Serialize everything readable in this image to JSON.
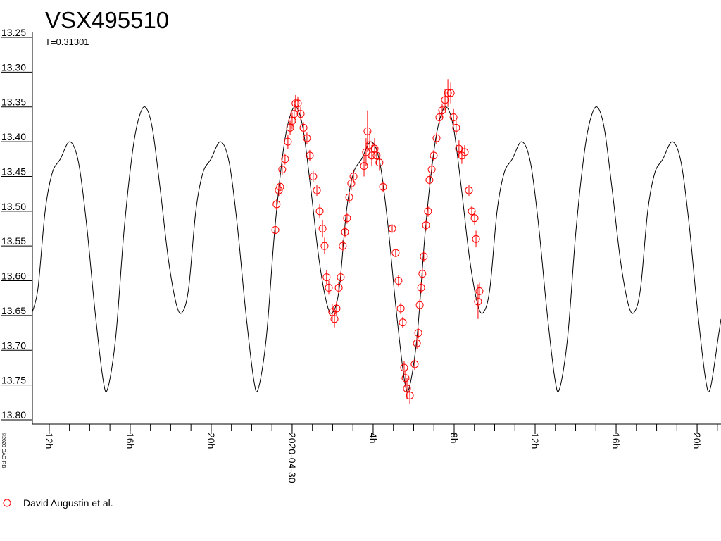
{
  "chart_data": {
    "type": "line",
    "title": "VSX495510",
    "subtitle": "T=0.31301",
    "credit": "©2020 OAG-RB",
    "xlim": [
      -12.83,
      21.18
    ],
    "ylim": [
      13.25,
      13.8
    ],
    "y_inverted": true,
    "xminor_interval": 1,
    "xticks": [
      {
        "value": -12,
        "label": "12h"
      },
      {
        "value": -8,
        "label": "16h"
      },
      {
        "value": -4,
        "label": "20h"
      },
      {
        "value": 0,
        "label": "2020-04-30"
      },
      {
        "value": 4,
        "label": "4h"
      },
      {
        "value": 8,
        "label": "8h"
      },
      {
        "value": 12,
        "label": "12h"
      },
      {
        "value": 16,
        "label": "16h"
      },
      {
        "value": 20,
        "label": "20h"
      }
    ],
    "yticks": [
      13.25,
      {
        "value": 13.3,
        "label": "13.30"
      },
      13.35,
      {
        "value": 13.4,
        "label": "13.40"
      },
      13.45,
      {
        "value": 13.5,
        "label": "13.50"
      },
      13.55,
      {
        "value": 13.6,
        "label": "13.60"
      },
      13.65,
      {
        "value": 13.7,
        "label": "13.70"
      },
      13.75,
      {
        "value": 13.8,
        "label": "13.80"
      }
    ],
    "series": [
      {
        "type": "line",
        "color": "#000000",
        "x": [
          -12.83,
          -12.55,
          -12.2,
          -11.85,
          -11.45,
          -10.98,
          -10.55,
          -10.15,
          -9.75,
          -9.35,
          -9.11,
          -8.71,
          -8.31,
          -7.91,
          -7.61,
          -7.27,
          -6.91,
          -6.51,
          -6.11,
          -5.71,
          -5.42,
          -5.11,
          -4.76,
          -4.41,
          -4.01,
          -3.54,
          -3.11,
          -2.71,
          -2.31,
          -1.91,
          -1.67,
          -1.27,
          -0.87,
          -0.47,
          -0.17,
          0.17,
          0.53,
          0.93,
          1.33,
          1.73,
          2.02,
          2.33,
          2.68,
          3.03,
          3.43,
          3.9,
          4.33,
          4.73,
          5.13,
          5.53,
          5.77,
          6.17,
          6.57,
          6.97,
          7.27,
          7.61,
          7.97,
          8.37,
          8.77,
          9.17,
          9.46,
          9.77,
          10.12,
          10.47,
          10.87,
          11.34,
          11.77,
          12.17,
          12.57,
          12.97,
          13.21,
          13.61,
          14.01,
          14.41,
          14.71,
          15.05,
          15.41,
          15.81,
          16.21,
          16.61,
          16.9,
          17.21,
          17.56,
          17.91,
          18.31,
          18.78,
          19.21,
          19.61,
          20.01,
          20.41,
          20.65,
          21.05,
          21.18
        ],
        "values": [
          13.645,
          13.61,
          13.5,
          13.445,
          13.425,
          13.4,
          13.43,
          13.52,
          13.64,
          13.74,
          13.755,
          13.68,
          13.53,
          13.42,
          13.37,
          13.35,
          13.38,
          13.47,
          13.57,
          13.635,
          13.645,
          13.61,
          13.5,
          13.445,
          13.425,
          13.4,
          13.43,
          13.52,
          13.64,
          13.74,
          13.755,
          13.68,
          13.53,
          13.42,
          13.37,
          13.35,
          13.38,
          13.47,
          13.57,
          13.635,
          13.645,
          13.61,
          13.5,
          13.445,
          13.425,
          13.4,
          13.43,
          13.52,
          13.64,
          13.74,
          13.755,
          13.68,
          13.53,
          13.42,
          13.37,
          13.35,
          13.38,
          13.47,
          13.57,
          13.635,
          13.645,
          13.61,
          13.5,
          13.445,
          13.425,
          13.4,
          13.43,
          13.52,
          13.64,
          13.74,
          13.755,
          13.68,
          13.53,
          13.42,
          13.37,
          13.35,
          13.38,
          13.47,
          13.57,
          13.635,
          13.645,
          13.61,
          13.5,
          13.445,
          13.425,
          13.4,
          13.43,
          13.52,
          13.64,
          13.74,
          13.755,
          13.68,
          13.655
        ]
      },
      {
        "type": "scatter",
        "name": "David Augustin et al.",
        "color": "#ff0000",
        "x": [
          -0.83,
          -0.77,
          -0.66,
          -0.59,
          -0.49,
          -0.35,
          -0.21,
          -0.1,
          0,
          0.1,
          0.17,
          0.28,
          0.42,
          0.56,
          0.73,
          0.87,
          1.04,
          1.22,
          1.36,
          1.5,
          1.6,
          1.7,
          1.81,
          1.98,
          2.09,
          2.19,
          2.3,
          2.4,
          2.5,
          2.61,
          2.71,
          2.82,
          2.92,
          3.03,
          3.55,
          3.65,
          3.72,
          3.83,
          3.93,
          4.07,
          4.17,
          4.31,
          4.49,
          4.94,
          5.11,
          5.25,
          5.36,
          5.46,
          5.53,
          5.6,
          5.67,
          5.81,
          6.05,
          6.16,
          6.23,
          6.3,
          6.37,
          6.43,
          6.5,
          6.61,
          6.71,
          6.78,
          6.89,
          6.99,
          7.13,
          7.27,
          7.41,
          7.55,
          7.69,
          7.83,
          7.97,
          8.1,
          8.24,
          8.38,
          8.52,
          8.73,
          8.87,
          9.01,
          9.08,
          9.18,
          9.25
        ],
        "values": [
          13.527,
          13.49,
          13.47,
          13.465,
          13.44,
          13.425,
          13.4,
          13.38,
          13.37,
          13.36,
          13.345,
          13.345,
          13.36,
          13.38,
          13.395,
          13.42,
          13.45,
          13.47,
          13.5,
          13.525,
          13.55,
          13.595,
          13.61,
          13.645,
          13.655,
          13.64,
          13.61,
          13.595,
          13.55,
          13.53,
          13.51,
          13.48,
          13.46,
          13.45,
          13.435,
          13.415,
          13.385,
          13.405,
          13.42,
          13.41,
          13.42,
          13.43,
          13.465,
          13.525,
          13.56,
          13.6,
          13.64,
          13.66,
          13.725,
          13.74,
          13.755,
          13.765,
          13.72,
          13.69,
          13.675,
          13.635,
          13.61,
          13.59,
          13.565,
          13.52,
          13.5,
          13.455,
          13.44,
          13.42,
          13.395,
          13.365,
          13.355,
          13.34,
          13.33,
          13.33,
          13.365,
          13.38,
          13.41,
          13.42,
          13.415,
          13.47,
          13.5,
          13.51,
          13.54,
          13.63,
          13.615
        ],
        "errors": [
          0.006,
          0.008,
          0.008,
          0.006,
          0.008,
          0.008,
          0.01,
          0.01,
          0.012,
          0.012,
          0.012,
          0.01,
          0.01,
          0.008,
          0.008,
          0.008,
          0.008,
          0.008,
          0.01,
          0.012,
          0.012,
          0.01,
          0.01,
          0.012,
          0.012,
          0.01,
          0.008,
          0.008,
          0.008,
          0.008,
          0.008,
          0.008,
          0.01,
          0.01,
          0.015,
          0.02,
          0.03,
          0.02,
          0.015,
          0.015,
          0.012,
          0.012,
          0.008,
          0.006,
          0.006,
          0.008,
          0.008,
          0.008,
          0.01,
          0.012,
          0.015,
          0.012,
          0.008,
          0.008,
          0.008,
          0.008,
          0.008,
          0.008,
          0.008,
          0.008,
          0.008,
          0.008,
          0.008,
          0.008,
          0.008,
          0.01,
          0.01,
          0.015,
          0.02,
          0.015,
          0.012,
          0.01,
          0.012,
          0.012,
          0.01,
          0.008,
          0.008,
          0.01,
          0.012,
          0.025,
          0.012
        ]
      }
    ]
  }
}
